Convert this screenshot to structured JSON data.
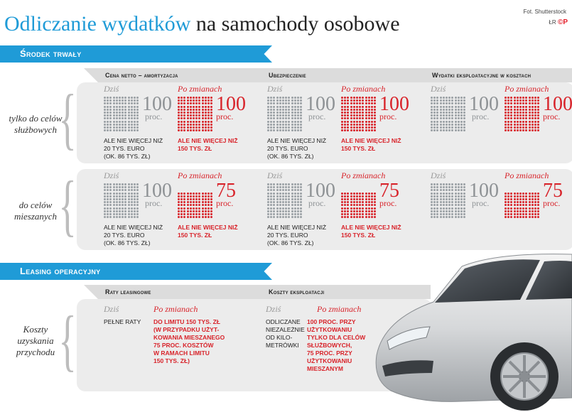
{
  "header": {
    "title_blue": "Odliczanie wydatków",
    "title_dark": "na samochody osobowe",
    "credit": "Fot. Shutterstock",
    "logo_prefix": "ŁR",
    "logo_mark": "©P"
  },
  "section1": {
    "title": "Środek trwały",
    "columns": [
      "Cena netto – amortyzacja",
      "Ubezpieczenie",
      "Wydatki eksploatacyjne w kosztach"
    ],
    "rows": [
      {
        "label_line1": "tylko do celów",
        "label_line2": "służbowych",
        "cells": [
          {
            "dzis": "Dziś",
            "dzis_value": "100",
            "dzis_unit": "proc.",
            "po": "Po zmianach",
            "po_value": "100",
            "po_unit": "proc.",
            "po_fraction": 1.0,
            "note_g": [
              "ALE NIE WIĘCEJ NIŻ",
              "20 TYS. EURO",
              "(OK. 86 TYS. ZŁ)"
            ],
            "note_r": [
              "ALE NIE WIĘCEJ NIŻ",
              "150 TYS. ZŁ"
            ]
          },
          {
            "dzis": "Dziś",
            "dzis_value": "100",
            "dzis_unit": "proc.",
            "po": "Po zmianach",
            "po_value": "100",
            "po_unit": "proc.",
            "po_fraction": 1.0,
            "note_g": [
              "ALE NIE WIĘCEJ NIŻ",
              "20 TYS. EURO",
              "(OK. 86 TYS. ZŁ)"
            ],
            "note_r": [
              "ALE NIE WIĘCEJ NIŻ",
              "150 TYS. ZŁ"
            ]
          },
          {
            "dzis": "Dziś",
            "dzis_value": "100",
            "dzis_unit": "proc.",
            "po": "Po zmianach",
            "po_value": "100",
            "po_unit": "proc.",
            "po_fraction": 1.0,
            "note_g": [],
            "note_r": []
          }
        ]
      },
      {
        "label_line1": "do celów",
        "label_line2": "mieszanych",
        "cells": [
          {
            "dzis": "Dziś",
            "dzis_value": "100",
            "dzis_unit": "proc.",
            "po": "Po zmianach",
            "po_value": "75",
            "po_unit": "proc.",
            "po_fraction": 0.75,
            "note_g": [
              "ALE NIE WIĘCEJ NIŻ",
              "20 TYS. EURO",
              "(OK. 86 TYS. ZŁ)"
            ],
            "note_r": [
              "ALE NIE WIĘCEJ NIŻ",
              "150 TYS. ZŁ"
            ]
          },
          {
            "dzis": "Dziś",
            "dzis_value": "100",
            "dzis_unit": "proc.",
            "po": "Po zmianach",
            "po_value": "75",
            "po_unit": "proc.",
            "po_fraction": 0.75,
            "note_g": [
              "ALE NIE WIĘCEJ NIŻ",
              "20 TYS. EURO",
              "(OK. 86 TYS. ZŁ)"
            ],
            "note_r": [
              "ALE NIE WIĘCEJ NIŻ",
              "150 TYS. ZŁ"
            ]
          },
          {
            "dzis": "Dziś",
            "dzis_value": "100",
            "dzis_unit": "proc.",
            "po": "Po zmianach",
            "po_value": "75",
            "po_unit": "proc.",
            "po_fraction": 0.75,
            "note_g": [],
            "note_r": []
          }
        ]
      }
    ]
  },
  "section2": {
    "title": "Leasing operacyjny",
    "columns": [
      "Raty leasingowe",
      "Koszty eksploatacji"
    ],
    "row_label": [
      "Koszty",
      "uzyskania",
      "przychodu"
    ],
    "cells": [
      {
        "dzis": "Dziś",
        "po": "Po zmianach",
        "note_g": [
          "PEŁNE RATY"
        ],
        "note_r": [
          "DO LIMITU 150 TYS. ZŁ",
          "(W PRZYPADKU UŻYT-",
          "KOWANIA MIESZANEGO",
          "75 PROC. KOSZTÓW",
          "W RAMACH LIMITU",
          "150 TYS. ZŁ)"
        ]
      },
      {
        "dzis": "Dziś",
        "po": "Po zmianach",
        "note_g": [
          "ODLICZANE",
          "NIEZALEŻNIE",
          "OD KILO-",
          "METRÓWKI"
        ],
        "note_r": [
          "100 PROC. PRZY",
          "UŻYTKOWANIU",
          "TYLKO DLA CELÓW",
          "SŁUŻBOWYCH,",
          "75 PROC. PRZY",
          "UŻYTKOWANIU",
          "MIESZANYM"
        ]
      }
    ]
  },
  "colors": {
    "blue": "#1f9bd7",
    "red": "#d8232a",
    "gray": "#8e9295"
  }
}
